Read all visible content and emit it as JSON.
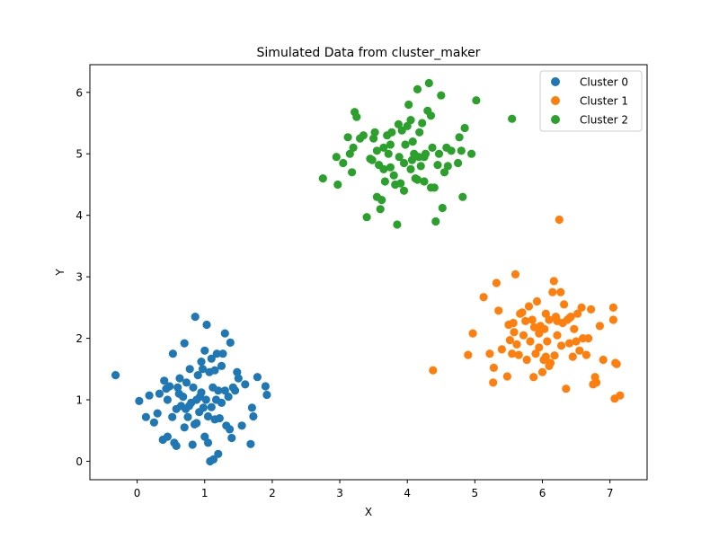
{
  "chart_data": {
    "type": "scatter",
    "title": "Simulated Data from cluster_maker",
    "xlabel": "X",
    "ylabel": "Y",
    "xlim": [
      -0.7,
      7.55
    ],
    "ylim": [
      -0.3,
      6.45
    ],
    "xticks": [
      0,
      1,
      2,
      3,
      4,
      5,
      6,
      7
    ],
    "yticks": [
      0,
      1,
      2,
      3,
      4,
      5,
      6
    ],
    "legend_position": "top-right",
    "grid": false,
    "series": [
      {
        "name": "Cluster 0",
        "color": "#1f77b4",
        "points": [
          [
            -0.32,
            1.4
          ],
          [
            0.03,
            0.98
          ],
          [
            0.13,
            0.72
          ],
          [
            0.18,
            1.07
          ],
          [
            0.25,
            0.63
          ],
          [
            0.3,
            0.78
          ],
          [
            0.33,
            1.1
          ],
          [
            0.38,
            0.35
          ],
          [
            0.4,
            1.31
          ],
          [
            0.43,
            1.18
          ],
          [
            0.45,
            0.4
          ],
          [
            0.48,
            1.22
          ],
          [
            0.52,
            0.72
          ],
          [
            0.53,
            1.75
          ],
          [
            0.55,
            0.3
          ],
          [
            0.58,
            0.25
          ],
          [
            0.58,
            0.85
          ],
          [
            0.62,
            1.1
          ],
          [
            0.63,
            1.35
          ],
          [
            0.65,
            0.9
          ],
          [
            0.68,
            1.05
          ],
          [
            0.7,
            1.92
          ],
          [
            0.72,
            0.85
          ],
          [
            0.73,
            1.28
          ],
          [
            0.75,
            0.72
          ],
          [
            0.77,
            0.9
          ],
          [
            0.78,
            1.5
          ],
          [
            0.8,
            0.95
          ],
          [
            0.82,
            0.27
          ],
          [
            0.83,
            1.2
          ],
          [
            0.85,
            0.6
          ],
          [
            0.86,
            2.35
          ],
          [
            0.88,
            0.62
          ],
          [
            0.9,
            1.4
          ],
          [
            0.92,
            0.8
          ],
          [
            0.93,
            1.05
          ],
          [
            0.95,
            1.12
          ],
          [
            0.97,
            1.5
          ],
          [
            0.98,
            0.87
          ],
          [
            1.0,
            0.4
          ],
          [
            1.0,
            1.8
          ],
          [
            1.02,
            1.0
          ],
          [
            1.03,
            2.22
          ],
          [
            1.05,
            0.3
          ],
          [
            1.05,
            0.73
          ],
          [
            1.07,
            1.45
          ],
          [
            1.08,
            0.0
          ],
          [
            1.1,
            1.67
          ],
          [
            1.1,
            0.88
          ],
          [
            1.12,
            1.2
          ],
          [
            1.13,
            0.03
          ],
          [
            1.15,
            0.68
          ],
          [
            1.17,
            1.0
          ],
          [
            1.18,
            1.75
          ],
          [
            1.2,
            1.15
          ],
          [
            1.2,
            0.12
          ],
          [
            1.22,
            0.7
          ],
          [
            1.25,
            0.95
          ],
          [
            1.27,
            1.75
          ],
          [
            1.3,
            2.08
          ],
          [
            1.3,
            1.15
          ],
          [
            1.32,
            0.58
          ],
          [
            1.35,
            1.05
          ],
          [
            1.37,
            0.52
          ],
          [
            1.38,
            1.93
          ],
          [
            1.4,
            0.38
          ],
          [
            1.42,
            1.2
          ],
          [
            1.45,
            1.15
          ],
          [
            1.48,
            1.45
          ],
          [
            1.5,
            1.35
          ],
          [
            1.55,
            0.58
          ],
          [
            1.6,
            1.25
          ],
          [
            1.68,
            0.28
          ],
          [
            1.7,
            0.87
          ],
          [
            1.72,
            0.73
          ],
          [
            1.78,
            1.37
          ],
          [
            1.9,
            1.22
          ],
          [
            1.92,
            1.08
          ],
          [
            0.6,
            1.2
          ],
          [
            0.95,
            1.62
          ],
          [
            1.15,
            1.48
          ],
          [
            0.45,
            1.0
          ],
          [
            0.7,
            0.55
          ],
          [
            1.25,
            1.55
          ],
          [
            0.88,
            1.0
          ]
        ]
      },
      {
        "name": "Cluster 1",
        "color": "#ff7f0e",
        "points": [
          [
            4.38,
            1.48
          ],
          [
            4.9,
            1.73
          ],
          [
            4.97,
            2.08
          ],
          [
            5.13,
            2.67
          ],
          [
            5.22,
            1.75
          ],
          [
            5.27,
            1.28
          ],
          [
            5.28,
            1.52
          ],
          [
            5.32,
            2.9
          ],
          [
            5.35,
            2.45
          ],
          [
            5.4,
            1.82
          ],
          [
            5.48,
            1.38
          ],
          [
            5.5,
            2.22
          ],
          [
            5.52,
            1.97
          ],
          [
            5.55,
            1.75
          ],
          [
            5.57,
            2.25
          ],
          [
            5.58,
            2.1
          ],
          [
            5.6,
            3.04
          ],
          [
            5.62,
            1.9
          ],
          [
            5.65,
            1.73
          ],
          [
            5.67,
            2.4
          ],
          [
            5.7,
            2.42
          ],
          [
            5.72,
            2.05
          ],
          [
            5.75,
            2.28
          ],
          [
            5.77,
            1.65
          ],
          [
            5.8,
            2.52
          ],
          [
            5.82,
            1.95
          ],
          [
            5.85,
            2.3
          ],
          [
            5.87,
            1.37
          ],
          [
            5.9,
            1.75
          ],
          [
            5.92,
            2.6
          ],
          [
            5.95,
            1.85
          ],
          [
            5.97,
            2.2
          ],
          [
            6.0,
            1.45
          ],
          [
            6.02,
            1.65
          ],
          [
            6.03,
            2.15
          ],
          [
            6.05,
            1.7
          ],
          [
            6.07,
            1.95
          ],
          [
            6.1,
            2.3
          ],
          [
            6.12,
            1.6
          ],
          [
            6.15,
            2.75
          ],
          [
            6.17,
            2.93
          ],
          [
            6.18,
            1.72
          ],
          [
            6.2,
            2.35
          ],
          [
            6.22,
            2.05
          ],
          [
            6.25,
            3.93
          ],
          [
            6.27,
            2.75
          ],
          [
            6.28,
            1.88
          ],
          [
            6.3,
            2.25
          ],
          [
            6.32,
            2.55
          ],
          [
            6.35,
            1.18
          ],
          [
            6.37,
            2.3
          ],
          [
            6.4,
            1.92
          ],
          [
            6.42,
            2.35
          ],
          [
            6.45,
            1.7
          ],
          [
            6.47,
            2.15
          ],
          [
            6.5,
            1.95
          ],
          [
            6.52,
            2.4
          ],
          [
            6.55,
            1.8
          ],
          [
            6.58,
            2.5
          ],
          [
            6.6,
            2.0
          ],
          [
            6.65,
            1.73
          ],
          [
            6.68,
            2.0
          ],
          [
            6.72,
            2.47
          ],
          [
            6.75,
            1.25
          ],
          [
            6.78,
            1.37
          ],
          [
            6.8,
            1.28
          ],
          [
            6.85,
            2.2
          ],
          [
            6.9,
            1.65
          ],
          [
            7.05,
            2.5
          ],
          [
            7.05,
            2.3
          ],
          [
            7.07,
            1.02
          ],
          [
            7.08,
            1.6
          ],
          [
            7.1,
            1.58
          ],
          [
            7.15,
            1.07
          ],
          [
            6.05,
            2.4
          ],
          [
            5.88,
            2.18
          ],
          [
            6.22,
            2.28
          ],
          [
            6.4,
            2.33
          ],
          [
            6.1,
            1.55
          ],
          [
            5.95,
            2.08
          ]
        ]
      },
      {
        "name": "Cluster 2",
        "color": "#2ca02c",
        "points": [
          [
            2.75,
            4.6
          ],
          [
            2.95,
            4.95
          ],
          [
            2.97,
            4.5
          ],
          [
            3.05,
            4.85
          ],
          [
            3.12,
            5.27
          ],
          [
            3.15,
            5.0
          ],
          [
            3.18,
            4.7
          ],
          [
            3.2,
            5.1
          ],
          [
            3.22,
            5.68
          ],
          [
            3.25,
            5.6
          ],
          [
            3.3,
            5.25
          ],
          [
            3.35,
            5.3
          ],
          [
            3.4,
            3.97
          ],
          [
            3.45,
            4.92
          ],
          [
            3.48,
            4.9
          ],
          [
            3.5,
            5.25
          ],
          [
            3.52,
            5.35
          ],
          [
            3.55,
            4.3
          ],
          [
            3.58,
            4.82
          ],
          [
            3.6,
            4.1
          ],
          [
            3.62,
            4.25
          ],
          [
            3.65,
            5.1
          ],
          [
            3.67,
            4.55
          ],
          [
            3.7,
            5.3
          ],
          [
            3.72,
            5.0
          ],
          [
            3.75,
            4.78
          ],
          [
            3.77,
            5.35
          ],
          [
            3.8,
            4.65
          ],
          [
            3.82,
            4.5
          ],
          [
            3.85,
            3.85
          ],
          [
            3.87,
            5.48
          ],
          [
            3.9,
            4.52
          ],
          [
            3.92,
            5.38
          ],
          [
            3.95,
            4.4
          ],
          [
            3.97,
            5.15
          ],
          [
            4.0,
            5.45
          ],
          [
            4.02,
            5.8
          ],
          [
            4.05,
            4.75
          ],
          [
            4.07,
            4.9
          ],
          [
            4.08,
            5.2
          ],
          [
            4.1,
            5.0
          ],
          [
            4.12,
            4.6
          ],
          [
            4.15,
            6.05
          ],
          [
            4.17,
            4.95
          ],
          [
            4.18,
            5.35
          ],
          [
            4.2,
            4.8
          ],
          [
            4.22,
            5.5
          ],
          [
            4.25,
            4.55
          ],
          [
            4.27,
            5.0
          ],
          [
            4.3,
            5.7
          ],
          [
            4.32,
            6.15
          ],
          [
            4.35,
            4.45
          ],
          [
            4.37,
            5.1
          ],
          [
            4.4,
            4.45
          ],
          [
            4.42,
            3.9
          ],
          [
            4.45,
            4.82
          ],
          [
            4.47,
            5.0
          ],
          [
            4.5,
            5.95
          ],
          [
            4.52,
            4.12
          ],
          [
            4.55,
            4.7
          ],
          [
            4.58,
            5.1
          ],
          [
            4.6,
            4.8
          ],
          [
            4.65,
            5.05
          ],
          [
            4.75,
            4.85
          ],
          [
            4.77,
            5.27
          ],
          [
            4.8,
            5.05
          ],
          [
            4.82,
            4.3
          ],
          [
            4.85,
            5.42
          ],
          [
            4.95,
            5.0
          ],
          [
            5.02,
            5.87
          ],
          [
            5.55,
            5.57
          ],
          [
            3.75,
            5.15
          ],
          [
            3.95,
            4.85
          ],
          [
            4.15,
            4.58
          ],
          [
            4.35,
            5.62
          ],
          [
            3.65,
            4.75
          ],
          [
            4.25,
            4.95
          ],
          [
            3.55,
            5.05
          ],
          [
            4.05,
            5.55
          ],
          [
            3.88,
            4.95
          ]
        ]
      }
    ]
  }
}
